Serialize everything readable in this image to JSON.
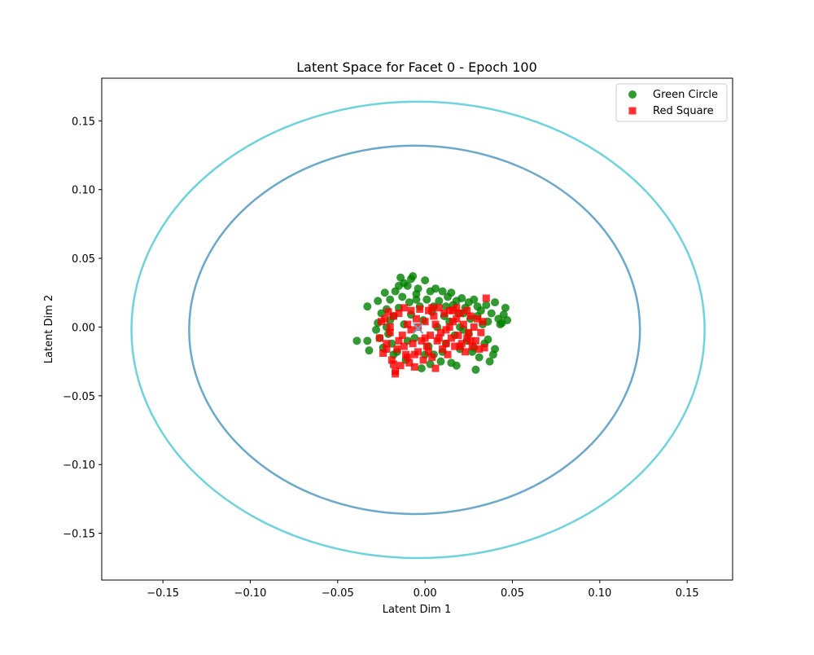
{
  "chart_data": {
    "type": "scatter",
    "title": "Latent Space for Facet 0 - Epoch 100",
    "xlabel": "Latent Dim 1",
    "ylabel": "Latent Dim 2",
    "xlim": [
      -0.185,
      0.176
    ],
    "ylim": [
      -0.184,
      0.181
    ],
    "xticks": [
      -0.15,
      -0.1,
      -0.05,
      0.0,
      0.05,
      0.1,
      0.15
    ],
    "xtick_labels": [
      "−0.15",
      "−0.10",
      "−0.05",
      "0.00",
      "0.05",
      "0.10",
      "0.15"
    ],
    "yticks": [
      -0.15,
      -0.1,
      -0.05,
      0.0,
      0.05,
      0.1,
      0.15
    ],
    "ytick_labels": [
      "−0.15",
      "−0.10",
      "−0.05",
      "0.00",
      "0.05",
      "0.10",
      "0.15"
    ],
    "grid": false,
    "legend_position": "top-right",
    "series": [
      {
        "name": "Green Circle",
        "marker": "circle",
        "color": "#008000",
        "points": [
          [
            -0.039,
            -0.01
          ],
          [
            -0.033,
            -0.01
          ],
          [
            -0.032,
            -0.017
          ],
          [
            -0.033,
            0.015
          ],
          [
            -0.027,
            0.019
          ],
          [
            -0.027,
            0.003
          ],
          [
            -0.026,
            -0.008
          ],
          [
            -0.023,
            0.025
          ],
          [
            -0.022,
            0.013
          ],
          [
            -0.021,
            -0.005
          ],
          [
            -0.02,
            0.02
          ],
          [
            -0.019,
            -0.012
          ],
          [
            -0.018,
            0.008
          ],
          [
            -0.017,
            0.026
          ],
          [
            -0.016,
            -0.018
          ],
          [
            -0.015,
            0.014
          ],
          [
            -0.014,
            0.036
          ],
          [
            -0.013,
            0.022
          ],
          [
            -0.012,
            0.002
          ],
          [
            -0.011,
            -0.024
          ],
          [
            -0.01,
            0.03
          ],
          [
            -0.009,
            0.018
          ],
          [
            -0.008,
            0.009
          ],
          [
            -0.007,
            0.037
          ],
          [
            -0.006,
            -0.008
          ],
          [
            -0.005,
            0.024
          ],
          [
            -0.004,
            0.028
          ],
          [
            -0.003,
            0.015
          ],
          [
            -0.002,
            -0.03
          ],
          [
            -0.001,
            0.005
          ],
          [
            0.0,
            0.034
          ],
          [
            0.001,
            0.02
          ],
          [
            0.002,
            -0.014
          ],
          [
            0.003,
            0.026
          ],
          [
            0.004,
            0.011
          ],
          [
            0.005,
            -0.02
          ],
          [
            0.006,
            0.028
          ],
          [
            0.007,
            0.0
          ],
          [
            0.008,
            0.019
          ],
          [
            0.009,
            -0.025
          ],
          [
            0.01,
            0.026
          ],
          [
            0.011,
            0.008
          ],
          [
            0.012,
            -0.012
          ],
          [
            0.013,
            0.022
          ],
          [
            0.014,
            0.004
          ],
          [
            0.015,
            -0.026
          ],
          [
            0.016,
            0.016
          ],
          [
            0.017,
            -0.006
          ],
          [
            0.018,
            0.019
          ],
          [
            0.019,
            0.01
          ],
          [
            0.02,
            -0.016
          ],
          [
            0.021,
            0.021
          ],
          [
            0.022,
            -0.002
          ],
          [
            0.023,
            0.014
          ],
          [
            0.024,
            -0.01
          ],
          [
            0.025,
            0.018
          ],
          [
            0.026,
            0.006
          ],
          [
            0.027,
            -0.018
          ],
          [
            0.028,
            0.02
          ],
          [
            0.029,
            -0.031
          ],
          [
            0.03,
            0.008
          ],
          [
            0.031,
            -0.022
          ],
          [
            0.032,
            0.012
          ],
          [
            0.033,
            0.002
          ],
          [
            0.035,
            0.016
          ],
          [
            0.036,
            -0.009
          ],
          [
            0.037,
            -0.025
          ],
          [
            0.038,
            0.01
          ],
          [
            0.039,
            -0.02
          ],
          [
            0.04,
            0.018
          ],
          [
            0.04,
            -0.016
          ],
          [
            0.042,
            0.006
          ],
          [
            0.043,
            0.002
          ],
          [
            0.044,
            0.003
          ],
          [
            0.045,
            0.009
          ],
          [
            0.046,
            0.014
          ],
          [
            0.047,
            0.005
          ],
          [
            -0.025,
            0.01
          ],
          [
            -0.024,
            -0.015
          ],
          [
            -0.02,
            0.005
          ],
          [
            -0.018,
            -0.02
          ],
          [
            -0.015,
            0.03
          ],
          [
            -0.01,
            -0.01
          ],
          [
            -0.005,
            0.02
          ],
          [
            0.0,
            -0.02
          ],
          [
            0.005,
            0.015
          ],
          [
            0.01,
            -0.018
          ],
          [
            0.015,
            0.025
          ],
          [
            0.02,
            0.0
          ],
          [
            0.025,
            -0.005
          ],
          [
            0.03,
            0.015
          ],
          [
            0.034,
            -0.012
          ],
          [
            -0.028,
            -0.002
          ],
          [
            -0.022,
            0.0
          ],
          [
            -0.012,
            0.032
          ],
          [
            0.003,
            -0.027
          ],
          [
            0.018,
            -0.028
          ],
          [
            0.028,
            -0.015
          ],
          [
            0.036,
            0.004
          ],
          [
            -0.008,
            0.035
          ],
          [
            0.012,
            0.015
          ],
          [
            0.022,
            0.01
          ]
        ]
      },
      {
        "name": "Red Square",
        "marker": "square",
        "color": "#ff0000",
        "points": [
          [
            -0.026,
            -0.008
          ],
          [
            -0.025,
            0.004
          ],
          [
            -0.024,
            -0.019
          ],
          [
            -0.023,
            0.006
          ],
          [
            -0.022,
            -0.012
          ],
          [
            -0.021,
            0.011
          ],
          [
            -0.02,
            -0.004
          ],
          [
            -0.019,
            -0.024
          ],
          [
            -0.018,
            0.008
          ],
          [
            -0.017,
            -0.032
          ],
          [
            -0.016,
            -0.016
          ],
          [
            -0.015,
            0.01
          ],
          [
            -0.014,
            -0.028
          ],
          [
            -0.013,
            -0.006
          ],
          [
            -0.012,
            0.014
          ],
          [
            -0.011,
            -0.02
          ],
          [
            -0.01,
            0.002
          ],
          [
            -0.009,
            -0.026
          ],
          [
            -0.008,
            0.012
          ],
          [
            -0.007,
            -0.012
          ],
          [
            -0.006,
            -0.029
          ],
          [
            -0.005,
            0.006
          ],
          [
            -0.004,
            -0.018
          ],
          [
            -0.003,
            0.013
          ],
          [
            -0.002,
            -0.01
          ],
          [
            -0.001,
            -0.024
          ],
          [
            0.0,
            0.004
          ],
          [
            0.001,
            -0.014
          ],
          [
            0.002,
            0.012
          ],
          [
            0.003,
            -0.006
          ],
          [
            0.004,
            -0.022
          ],
          [
            0.005,
            0.008
          ],
          [
            0.006,
            -0.03
          ],
          [
            0.007,
            -0.01
          ],
          [
            0.008,
            0.014
          ],
          [
            0.009,
            -0.004
          ],
          [
            0.01,
            -0.016
          ],
          [
            0.011,
            0.01
          ],
          [
            0.012,
            -0.002
          ],
          [
            0.013,
            -0.02
          ],
          [
            0.014,
            0.012
          ],
          [
            0.015,
            -0.008
          ],
          [
            0.016,
            0.004
          ],
          [
            0.017,
            -0.014
          ],
          [
            0.018,
            0.014
          ],
          [
            0.019,
            -0.006
          ],
          [
            0.02,
            0.01
          ],
          [
            0.021,
            -0.012
          ],
          [
            0.022,
            0.002
          ],
          [
            0.023,
            -0.018
          ],
          [
            0.024,
            0.012
          ],
          [
            0.025,
            -0.004
          ],
          [
            0.026,
            0.008
          ],
          [
            0.027,
            -0.014
          ],
          [
            0.028,
            0.0
          ],
          [
            0.029,
            -0.01
          ],
          [
            0.03,
            0.006
          ],
          [
            0.031,
            -0.016
          ],
          [
            0.032,
            -0.004
          ],
          [
            0.033,
            0.004
          ],
          [
            0.034,
            -0.015
          ],
          [
            0.035,
            0.021
          ],
          [
            -0.017,
            -0.034
          ],
          [
            -0.01,
            -0.022
          ],
          [
            -0.004,
            0.0
          ],
          [
            0.002,
            -0.018
          ],
          [
            0.008,
            -0.008
          ],
          [
            0.014,
            0.0
          ],
          [
            0.02,
            -0.014
          ],
          [
            0.026,
            -0.01
          ],
          [
            -0.02,
            0.0
          ],
          [
            -0.015,
            -0.01
          ],
          [
            -0.008,
            -0.002
          ],
          [
            0.0,
            -0.008
          ],
          [
            0.006,
            0.002
          ],
          [
            0.012,
            -0.012
          ],
          [
            0.018,
            0.006
          ],
          [
            0.024,
            -0.008
          ],
          [
            -0.022,
            -0.016
          ],
          [
            -0.018,
            -0.027
          ],
          [
            -0.012,
            -0.014
          ],
          [
            -0.006,
            -0.02
          ],
          [
            0.004,
            0.014
          ],
          [
            0.016,
            0.012
          ]
        ]
      }
    ],
    "ellipses": [
      {
        "color": "#6dd4dc",
        "cx": -0.004,
        "cy": -0.002,
        "rx": 0.164,
        "ry": 0.166
      },
      {
        "color": "#6aa8cc",
        "cx": -0.006,
        "cy": -0.002,
        "rx": 0.129,
        "ry": 0.134
      }
    ],
    "center_marker": {
      "marker": "x",
      "color": "#6aa8cc",
      "x": -0.004,
      "y": -0.001
    }
  }
}
